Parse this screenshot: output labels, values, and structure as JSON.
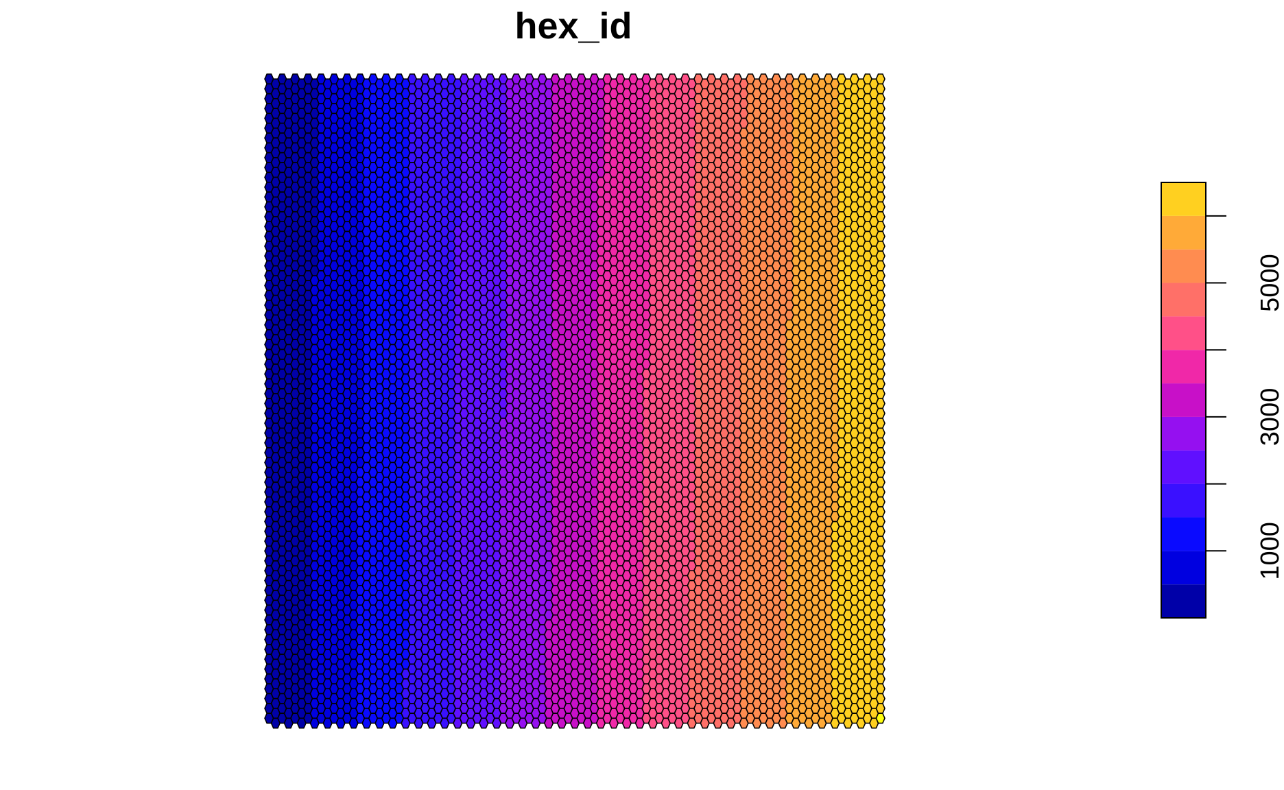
{
  "chart_data": {
    "type": "heatmap",
    "subtype": "hexagonal grid map",
    "title": "hex_id",
    "value_field": "hex_id",
    "value_range": [
      1,
      6500
    ],
    "grid": {
      "columns": 95,
      "rows": 66
    },
    "gradient_direction": "left-to-right",
    "legend": {
      "placement": "right",
      "orientation": "vertical",
      "breaks": [
        0,
        500,
        1000,
        1500,
        2000,
        2500,
        3000,
        3500,
        4000,
        4500,
        5000,
        5500,
        6000,
        6500
      ],
      "colors": [
        "#0000A8",
        "#0000E0",
        "#0A0AFF",
        "#3A10FF",
        "#6010FF",
        "#9510F0",
        "#C810C8",
        "#F028A8",
        "#FF5088",
        "#FF7068",
        "#FF8C50",
        "#FFAA38",
        "#FFD020",
        "#FFFF10"
      ],
      "ticks": [
        1000,
        2000,
        3000,
        4000,
        5000,
        6000
      ],
      "tick_labels": [
        "1000",
        "",
        "3000",
        "",
        "5000",
        ""
      ]
    }
  }
}
